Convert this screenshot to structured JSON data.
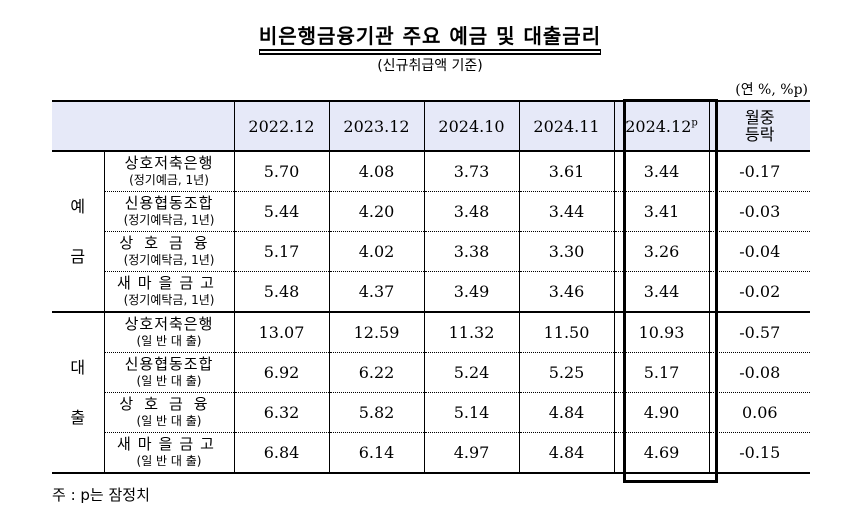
{
  "title": "비은행금융기관 주요 예금 및 대출금리",
  "subtitle": "(신규취급액 기준)",
  "unit": "(연 %, %p)",
  "columns": [
    "2022.12",
    "2023.12",
    "2024.10",
    "2024.11",
    "2024.12"
  ],
  "highlight_column_suffix": "p",
  "change_header": [
    "월중",
    "등락"
  ],
  "groups": [
    {
      "label_chars": [
        "예",
        "금"
      ],
      "rows": [
        {
          "institution": "상호저축은행",
          "product": "(정기예금, 1년)",
          "values": [
            "5.70",
            "4.08",
            "3.73",
            "3.61",
            "3.44"
          ],
          "change": "-0.17"
        },
        {
          "institution": "신용협동조합",
          "product": "(정기예탁금, 1년)",
          "values": [
            "5.44",
            "4.20",
            "3.48",
            "3.44",
            "3.41"
          ],
          "change": "-0.03"
        },
        {
          "institution": "상호금융",
          "product": "(정기예탁금, 1년)",
          "values": [
            "5.17",
            "4.02",
            "3.38",
            "3.30",
            "3.26"
          ],
          "change": "-0.04"
        },
        {
          "institution": "새마을금고",
          "product": "(정기예탁금, 1년)",
          "values": [
            "5.48",
            "4.37",
            "3.49",
            "3.46",
            "3.44"
          ],
          "change": "-0.02"
        }
      ]
    },
    {
      "label_chars": [
        "대",
        "출"
      ],
      "rows": [
        {
          "institution": "상호저축은행",
          "product": "(일 반 대 출)",
          "values": [
            "13.07",
            "12.59",
            "11.32",
            "11.50",
            "10.93"
          ],
          "change": "-0.57"
        },
        {
          "institution": "신용협동조합",
          "product": "(일 반 대 출)",
          "values": [
            "6.92",
            "6.22",
            "5.24",
            "5.25",
            "5.17"
          ],
          "change": "-0.08"
        },
        {
          "institution": "상호금융",
          "product": "(일 반 대 출)",
          "values": [
            "6.32",
            "5.82",
            "5.14",
            "4.84",
            "4.90"
          ],
          "change": "0.06"
        },
        {
          "institution": "새마을금고",
          "product": "(일 반 대 출)",
          "values": [
            "6.84",
            "6.14",
            "4.97",
            "4.84",
            "4.69"
          ],
          "change": "-0.15"
        }
      ]
    }
  ],
  "note": "주 : p는 잠정치",
  "colors": {
    "header_bg": "#e6e9f8"
  }
}
